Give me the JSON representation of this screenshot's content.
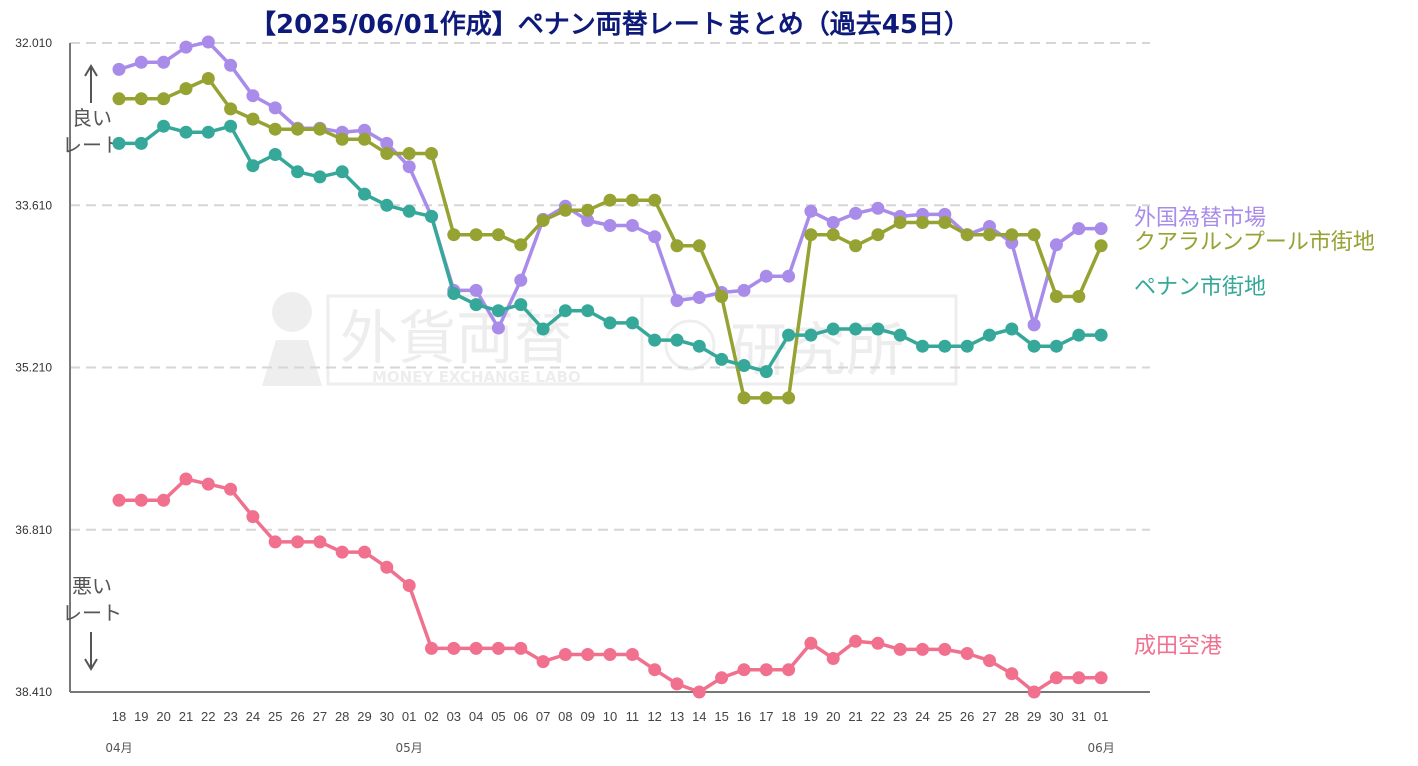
{
  "chart_data": {
    "type": "line",
    "title": "【2025/06/01作成】ペナン両替レートまとめ（過去45日）",
    "ylim": [
      32.01,
      38.41
    ],
    "y_inverted": true,
    "yticks": [
      "32.010",
      "33.610",
      "35.210",
      "36.810",
      "38.410"
    ],
    "grid": "horizontal-dashed",
    "x": [
      "18",
      "19",
      "20",
      "21",
      "22",
      "23",
      "24",
      "25",
      "26",
      "27",
      "28",
      "29",
      "30",
      "01",
      "02",
      "03",
      "04",
      "05",
      "06",
      "07",
      "08",
      "09",
      "10",
      "11",
      "12",
      "13",
      "14",
      "15",
      "16",
      "17",
      "18",
      "19",
      "20",
      "21",
      "22",
      "23",
      "24",
      "25",
      "26",
      "27",
      "28",
      "29",
      "30",
      "31",
      "01"
    ],
    "months": [
      {
        "label": "04月",
        "index": 0
      },
      {
        "label": "05月",
        "index": 13
      },
      {
        "label": "06月",
        "index": 44
      }
    ],
    "better_label": [
      "良い",
      "レート"
    ],
    "worse_label": [
      "悪い",
      "レート"
    ],
    "series": [
      {
        "name": "外国為替市場",
        "color": "#a98bea",
        "values": [
          32.27,
          32.2,
          32.2,
          32.05,
          32.0,
          32.23,
          32.53,
          32.65,
          32.85,
          32.85,
          32.89,
          32.87,
          33.0,
          33.23,
          33.72,
          34.45,
          34.45,
          34.82,
          34.35,
          33.75,
          33.62,
          33.76,
          33.81,
          33.81,
          33.92,
          34.55,
          34.52,
          34.47,
          34.45,
          34.31,
          34.31,
          33.67,
          33.78,
          33.69,
          33.64,
          33.72,
          33.7,
          33.7,
          33.9,
          33.82,
          33.98,
          34.79,
          34.0,
          33.84,
          33.84
        ]
      },
      {
        "name": "クアラルンプール市街地",
        "color": "#96a232",
        "values": [
          32.56,
          32.56,
          32.56,
          32.46,
          32.36,
          32.66,
          32.76,
          32.86,
          32.86,
          32.86,
          32.96,
          32.96,
          33.1,
          33.1,
          33.1,
          33.9,
          33.9,
          33.9,
          34.0,
          33.76,
          33.66,
          33.66,
          33.56,
          33.56,
          33.56,
          34.01,
          34.01,
          34.51,
          35.51,
          35.51,
          35.51,
          33.9,
          33.9,
          34.01,
          33.9,
          33.78,
          33.78,
          33.78,
          33.9,
          33.9,
          33.9,
          33.9,
          34.51,
          34.51,
          34.01
        ]
      },
      {
        "name": "ペナン市街地",
        "color": "#36a89a",
        "values": [
          33.0,
          33.0,
          32.83,
          32.89,
          32.89,
          32.83,
          33.22,
          33.11,
          33.28,
          33.33,
          33.28,
          33.5,
          33.61,
          33.67,
          33.72,
          34.48,
          34.59,
          34.65,
          34.59,
          34.83,
          34.65,
          34.65,
          34.77,
          34.77,
          34.94,
          34.94,
          35.0,
          35.13,
          35.19,
          35.25,
          34.89,
          34.89,
          34.83,
          34.83,
          34.83,
          34.89,
          35.0,
          35.0,
          35.0,
          34.89,
          34.83,
          35.0,
          35.0,
          34.89,
          34.89
        ]
      },
      {
        "name": "成田空港",
        "color": "#f0708e",
        "values": [
          36.52,
          36.52,
          36.52,
          36.31,
          36.36,
          36.41,
          36.68,
          36.93,
          36.93,
          36.93,
          37.03,
          37.03,
          37.18,
          37.36,
          37.98,
          37.98,
          37.98,
          37.98,
          37.98,
          38.11,
          38.04,
          38.04,
          38.04,
          38.04,
          38.19,
          38.33,
          38.41,
          38.27,
          38.19,
          38.19,
          38.19,
          37.93,
          38.08,
          37.91,
          37.93,
          37.99,
          37.99,
          37.99,
          38.03,
          38.1,
          38.23,
          38.41,
          38.27,
          38.27,
          38.27
        ]
      }
    ]
  }
}
